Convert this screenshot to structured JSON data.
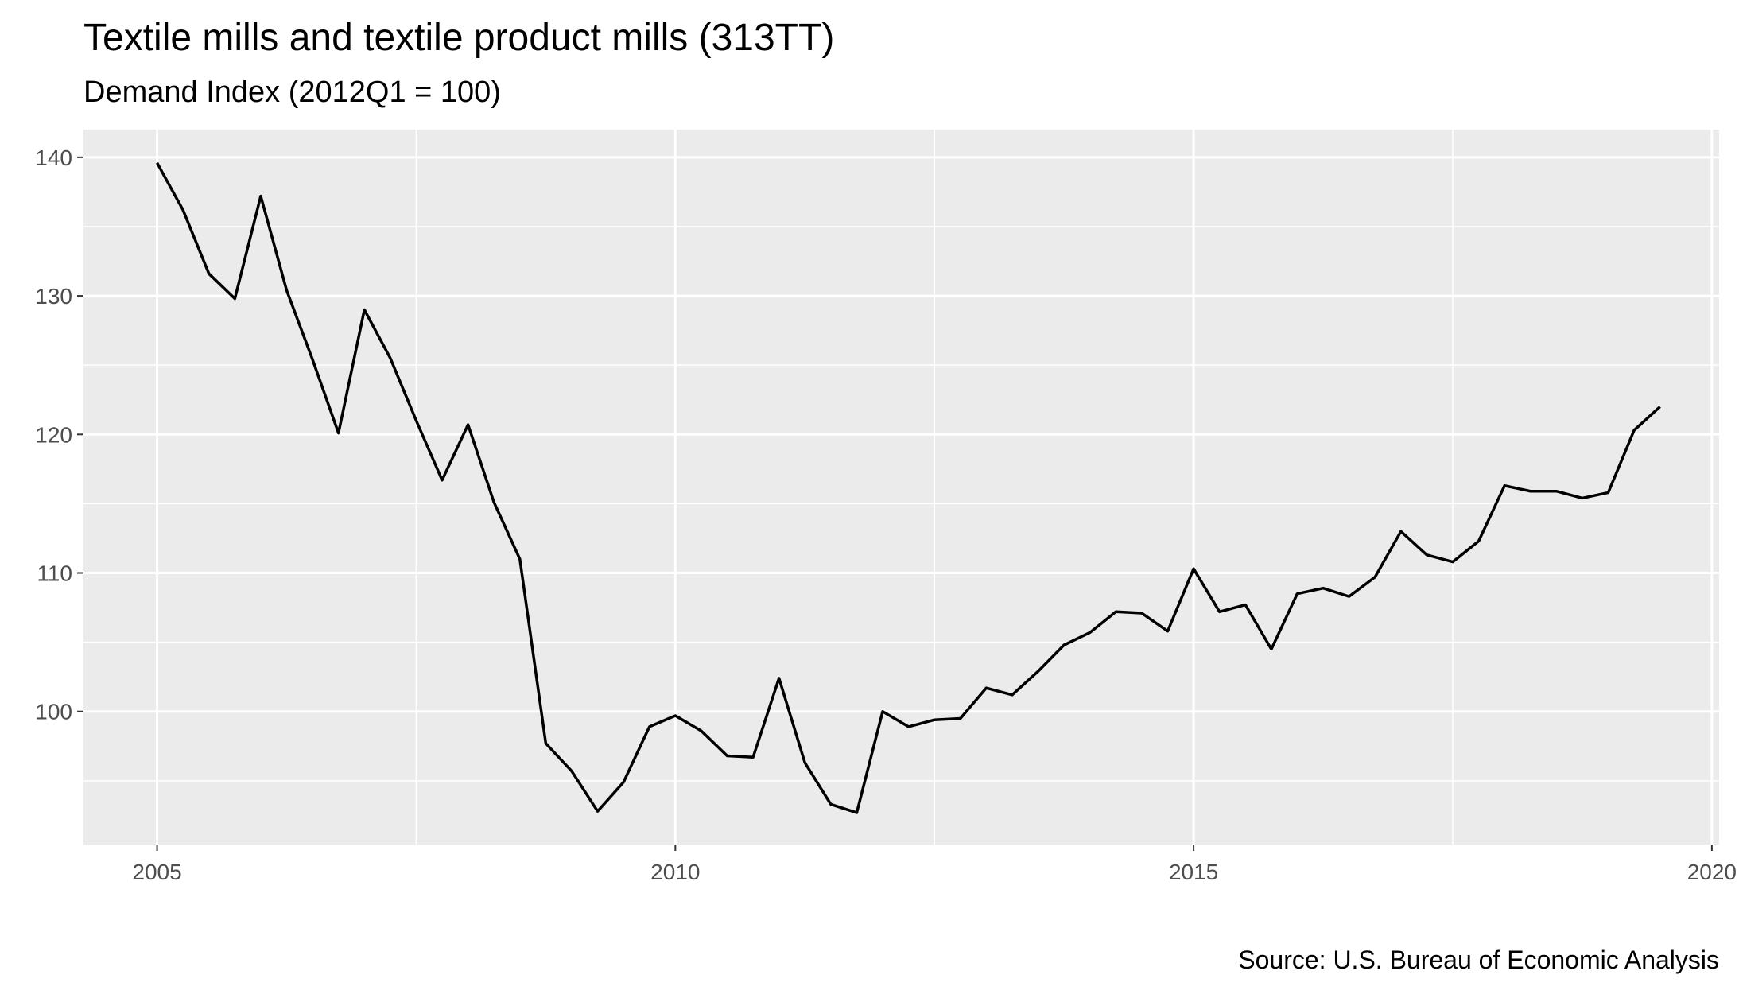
{
  "chart_data": {
    "type": "line",
    "title": "Textile mills and textile product mills (313TT)",
    "subtitle": "Demand Index (2012Q1 = 100)",
    "caption": "Source: U.S. Bureau of Economic Analysis",
    "xlabel": "",
    "ylabel": "",
    "x_ticks": [
      2005,
      2010,
      2015,
      2020
    ],
    "y_ticks": [
      100,
      110,
      120,
      130,
      140
    ],
    "xlim": [
      2004.29,
      2020.07
    ],
    "ylim": [
      90.4,
      142.0
    ],
    "grid": true,
    "legend": "none",
    "colors": {
      "panel": "#ebebeb",
      "grid": "#ffffff",
      "line": "#000000",
      "tick_text": "#4d4d4d"
    },
    "series": [
      {
        "x": [
          2005.0,
          2005.25,
          2005.5,
          2005.75,
          2006.0,
          2006.25,
          2006.5,
          2006.75,
          2007.0,
          2007.25,
          2007.5,
          2007.75,
          2008.0,
          2008.25,
          2008.5,
          2008.75,
          2009.0,
          2009.25,
          2009.5,
          2009.75,
          2010.0,
          2010.25,
          2010.5,
          2010.75,
          2011.0,
          2011.25,
          2011.5,
          2011.75,
          2012.0,
          2012.25,
          2012.5,
          2012.75,
          2013.0,
          2013.25,
          2013.5,
          2013.75,
          2014.0,
          2014.25,
          2014.5,
          2014.75,
          2015.0,
          2015.25,
          2015.5,
          2015.75,
          2016.0,
          2016.25,
          2016.5,
          2016.75,
          2017.0,
          2017.25,
          2017.5,
          2017.75,
          2018.0,
          2018.25,
          2018.5,
          2018.75,
          2019.0,
          2019.25,
          2019.5
        ],
        "values": [
          139.6,
          136.2,
          131.6,
          129.8,
          137.2,
          130.4,
          125.4,
          120.1,
          129.0,
          125.5,
          121.0,
          116.7,
          120.7,
          115.1,
          111.0,
          97.7,
          95.7,
          92.8,
          94.9,
          98.9,
          99.7,
          98.6,
          96.8,
          96.7,
          102.4,
          96.3,
          93.3,
          92.7,
          100.0,
          98.9,
          99.4,
          99.5,
          101.7,
          101.2,
          102.9,
          104.8,
          105.7,
          107.2,
          107.1,
          105.8,
          110.3,
          107.2,
          107.7,
          104.5,
          108.5,
          108.9,
          108.3,
          109.7,
          113.0,
          111.3,
          110.8,
          112.3,
          116.3,
          115.9,
          115.9,
          115.4,
          115.8,
          120.3,
          122.0
        ]
      }
    ]
  }
}
